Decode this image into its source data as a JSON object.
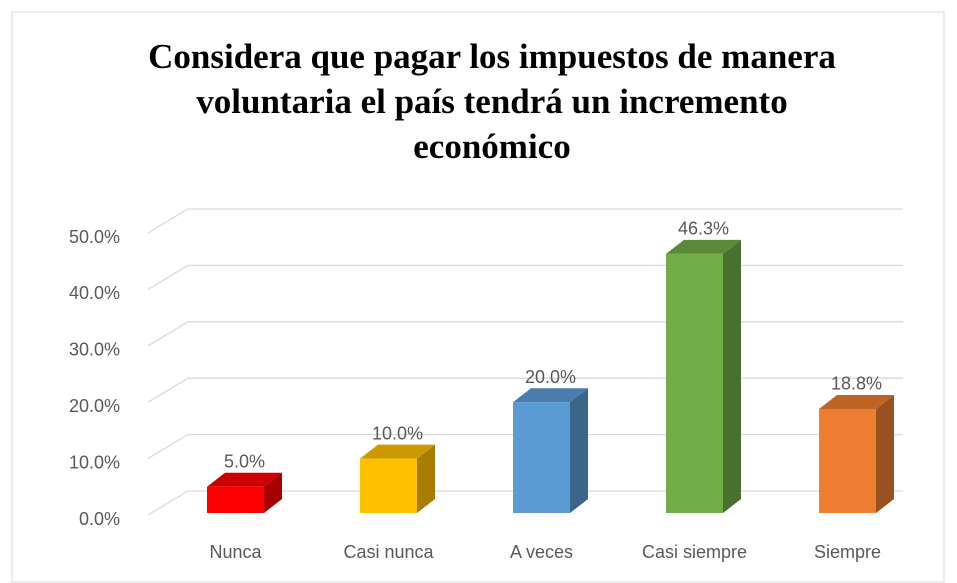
{
  "chart_data": {
    "type": "bar3d",
    "title": [
      "Considera que pagar los impuestos de manera",
      "voluntaria el país tendrá un incremento",
      "económico"
    ],
    "categories": [
      "Nunca",
      "Casi nunca",
      "A veces",
      "Casi siempre",
      "Siempre"
    ],
    "values": [
      5.0,
      10.0,
      20.0,
      46.3,
      18.8
    ],
    "value_labels": [
      "5.0%",
      "10.0%",
      "20.0%",
      "46.3%",
      "18.8%"
    ],
    "colors": [
      "#ff0000",
      "#ffc000",
      "#5b9bd5",
      "#70ad47",
      "#ed7d31"
    ],
    "ylim": [
      0,
      50
    ],
    "yticks": [
      {
        "value": 0,
        "label": "0.0%"
      },
      {
        "value": 10,
        "label": "10.0%"
      },
      {
        "value": 20,
        "label": "20.0%"
      },
      {
        "value": 30,
        "label": "30.0%"
      },
      {
        "value": 40,
        "label": "40.0%"
      },
      {
        "value": 50,
        "label": "50.0%"
      }
    ],
    "grid": true
  }
}
